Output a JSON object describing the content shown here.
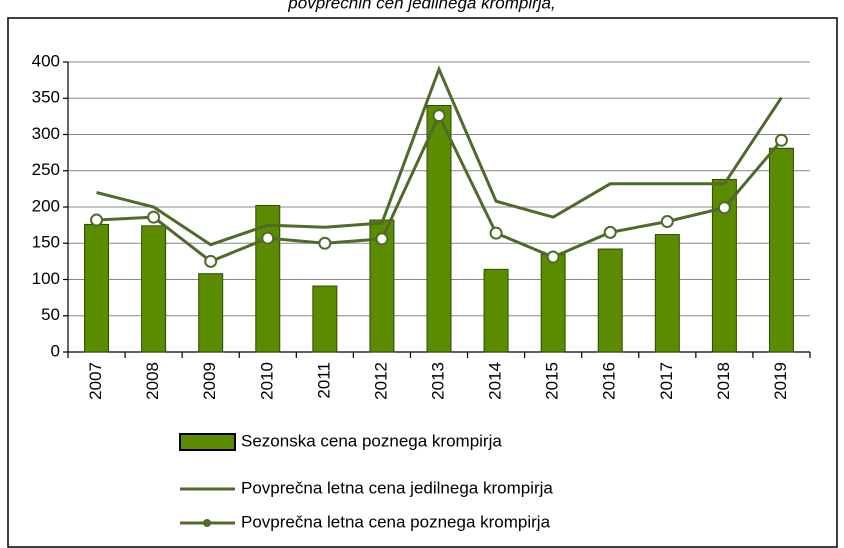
{
  "chart_data": {
    "type": "bar_line",
    "title": "povprečnih cen jedilnega krompirja,",
    "categories": [
      "2007",
      "2008",
      "2009",
      "2010",
      "2011",
      "2012",
      "2013",
      "2014",
      "2015",
      "2016",
      "2017",
      "2018",
      "2019"
    ],
    "series": [
      {
        "name": "Sezonska cena poznega krompirja",
        "type": "bar",
        "color": "#5b8c00",
        "values": [
          176,
          174,
          108,
          202,
          91,
          182,
          340,
          114,
          135,
          142,
          162,
          238,
          281
        ]
      },
      {
        "name": "Povprečna letna cena jedilnega krompirja",
        "type": "line",
        "color": "#4f6a2a",
        "values": [
          220,
          200,
          148,
          175,
          172,
          178,
          390,
          208,
          186,
          232,
          232,
          232,
          351
        ]
      },
      {
        "name": "Povprečna letna cena poznega krompirja",
        "type": "line_marker",
        "color": "#4f6a2a",
        "values": [
          182,
          186,
          125,
          157,
          150,
          156,
          326,
          164,
          131,
          165,
          180,
          199,
          292
        ]
      }
    ],
    "ylim": [
      0,
      400
    ],
    "yticks": [
      0,
      50,
      100,
      150,
      200,
      250,
      300,
      350,
      400
    ],
    "grid": true
  }
}
